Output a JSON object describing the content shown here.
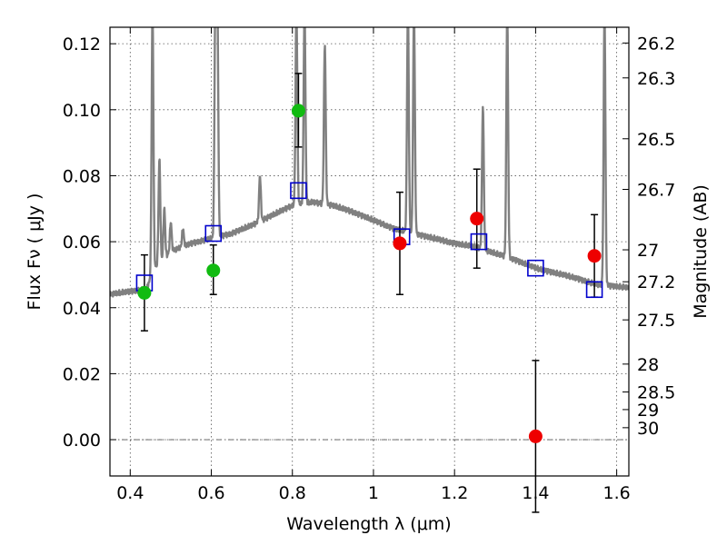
{
  "chart_data": {
    "type": "scatter",
    "xlabel": "Wavelength  λ (μm)",
    "ylabel": "Flux  Fν  ( μJy )",
    "ylabel_right": "Magnitude (AB)",
    "xlim": [
      0.35,
      1.63
    ],
    "ylim": [
      -0.011,
      0.125
    ],
    "grid": true,
    "x_ticks": [
      {
        "v": 0.4,
        "label": "0.4"
      },
      {
        "v": 0.6,
        "label": "0.6"
      },
      {
        "v": 0.8,
        "label": "0.8"
      },
      {
        "v": 1.0,
        "label": "1"
      },
      {
        "v": 1.2,
        "label": "1.2"
      },
      {
        "v": 1.4,
        "label": "1.4"
      },
      {
        "v": 1.6,
        "label": "1.6"
      }
    ],
    "y_ticks": [
      {
        "v": 0.0,
        "label": "0.00"
      },
      {
        "v": 0.02,
        "label": "0.02"
      },
      {
        "v": 0.04,
        "label": "0.04"
      },
      {
        "v": 0.06,
        "label": "0.06"
      },
      {
        "v": 0.08,
        "label": "0.08"
      },
      {
        "v": 0.1,
        "label": "0.10"
      },
      {
        "v": 0.12,
        "label": "0.12"
      }
    ],
    "right_ticks": [
      {
        "mag": 26.2,
        "label": "26.2"
      },
      {
        "mag": 26.3,
        "label": "26.3"
      },
      {
        "mag": 26.5,
        "label": "26.5"
      },
      {
        "mag": 26.7,
        "label": "26.7"
      },
      {
        "mag": 27.0,
        "label": "27"
      },
      {
        "mag": 27.2,
        "label": "27.2"
      },
      {
        "mag": 27.5,
        "label": "27.5"
      },
      {
        "mag": 28.0,
        "label": "28"
      },
      {
        "mag": 28.5,
        "label": "28.5"
      },
      {
        "mag": 29.0,
        "label": "29"
      },
      {
        "mag": 30.0,
        "label": "30"
      }
    ],
    "colors": {
      "spectrum": "#808080",
      "model_box": "#0000cc",
      "green": "#11bb11",
      "red": "#ee0000",
      "errorbar": "#000000",
      "grid": "#555555",
      "zero_line": "#555555"
    },
    "spectrum": {
      "continuum": [
        [
          0.35,
          0.044
        ],
        [
          0.4,
          0.045
        ],
        [
          0.44,
          0.0455
        ],
        [
          0.46,
          0.052
        ],
        [
          0.5,
          0.057
        ],
        [
          0.55,
          0.0595
        ],
        [
          0.6,
          0.061
        ],
        [
          0.65,
          0.0625
        ],
        [
          0.7,
          0.065
        ],
        [
          0.75,
          0.068
        ],
        [
          0.8,
          0.071
        ],
        [
          0.85,
          0.072
        ],
        [
          0.9,
          0.071
        ],
        [
          0.95,
          0.069
        ],
        [
          1.0,
          0.0665
        ],
        [
          1.05,
          0.064
        ],
        [
          1.1,
          0.0625
        ],
        [
          1.15,
          0.061
        ],
        [
          1.2,
          0.0595
        ],
        [
          1.25,
          0.0585
        ],
        [
          1.3,
          0.0565
        ],
        [
          1.35,
          0.0545
        ],
        [
          1.4,
          0.052
        ],
        [
          1.45,
          0.0505
        ],
        [
          1.5,
          0.049
        ],
        [
          1.55,
          0.047
        ],
        [
          1.6,
          0.0465
        ],
        [
          1.63,
          0.046
        ]
      ],
      "lines": [
        {
          "x": 0.455,
          "h": 0.13
        },
        {
          "x": 0.472,
          "h": 0.085
        },
        {
          "x": 0.484,
          "h": 0.07
        },
        {
          "x": 0.5,
          "h": 0.066
        },
        {
          "x": 0.53,
          "h": 0.064
        },
        {
          "x": 0.61,
          "h": 0.13
        },
        {
          "x": 0.615,
          "h": 0.13
        },
        {
          "x": 0.72,
          "h": 0.08
        },
        {
          "x": 0.81,
          "h": 0.13
        },
        {
          "x": 0.83,
          "h": 0.13
        },
        {
          "x": 0.88,
          "h": 0.12
        },
        {
          "x": 1.085,
          "h": 0.13
        },
        {
          "x": 1.1,
          "h": 0.13
        },
        {
          "x": 1.27,
          "h": 0.101
        },
        {
          "x": 1.33,
          "h": 0.13
        },
        {
          "x": 1.57,
          "h": 0.13
        }
      ]
    },
    "model_boxes": [
      {
        "x": 0.435,
        "y": 0.0475
      },
      {
        "x": 0.605,
        "y": 0.0625
      },
      {
        "x": 0.815,
        "y": 0.0755
      },
      {
        "x": 1.07,
        "y": 0.0615
      },
      {
        "x": 1.26,
        "y": 0.06
      },
      {
        "x": 1.4,
        "y": 0.052
      },
      {
        "x": 1.545,
        "y": 0.0455
      }
    ],
    "measurements": [
      {
        "x": 0.435,
        "y": 0.0445,
        "err_lo": 0.0115,
        "err_hi": 0.0115,
        "color": "green"
      },
      {
        "x": 0.605,
        "y": 0.0513,
        "err_lo": 0.0073,
        "err_hi": 0.0077,
        "color": "green"
      },
      {
        "x": 0.815,
        "y": 0.0997,
        "err_lo": 0.011,
        "err_hi": 0.0113,
        "color": "green"
      },
      {
        "x": 1.065,
        "y": 0.0595,
        "err_lo": 0.0155,
        "err_hi": 0.0155,
        "color": "red"
      },
      {
        "x": 1.255,
        "y": 0.067,
        "err_lo": 0.015,
        "err_hi": 0.015,
        "color": "red"
      },
      {
        "x": 1.4,
        "y": 0.001,
        "err_lo": 0.023,
        "err_hi": 0.023,
        "color": "red"
      },
      {
        "x": 1.545,
        "y": 0.0557,
        "err_lo": 0.0125,
        "err_hi": 0.0125,
        "color": "red"
      }
    ]
  }
}
